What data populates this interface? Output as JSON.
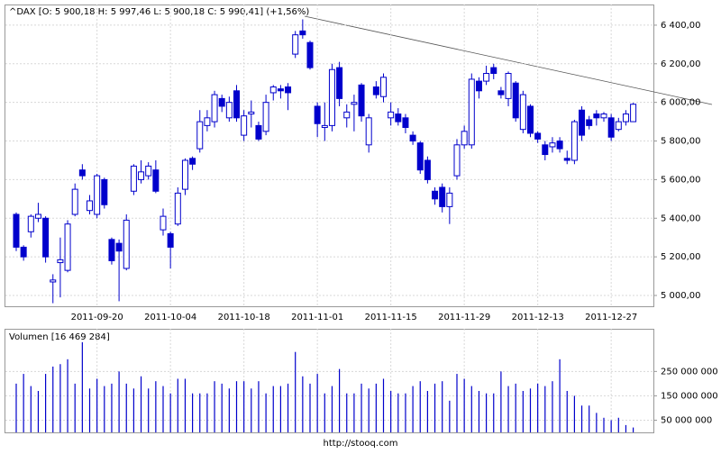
{
  "chart_data": [
    {
      "type": "candlestick",
      "subtitle": "^DAX [O: 5 900,18  H: 5 997,46  L: 5 900,18  C: 5 990,41] (+1,56%)",
      "color": "#0000cc",
      "categories": [
        null,
        null,
        null,
        null,
        null,
        null,
        null,
        null,
        null,
        null,
        null,
        "2011-09-20",
        null,
        null,
        null,
        null,
        null,
        null,
        null,
        null,
        null,
        "2011-10-04",
        null,
        null,
        null,
        null,
        null,
        null,
        null,
        null,
        null,
        "2011-10-18",
        null,
        null,
        null,
        null,
        null,
        null,
        null,
        null,
        null,
        "2011-11-01",
        null,
        null,
        null,
        null,
        null,
        null,
        null,
        null,
        null,
        "2011-11-15",
        null,
        null,
        null,
        null,
        null,
        null,
        null,
        null,
        null,
        "2011-11-29",
        null,
        null,
        null,
        null,
        null,
        null,
        null,
        null,
        null,
        "2011-12-13",
        null,
        null,
        null,
        null,
        null,
        null,
        null,
        null,
        null,
        "2011-12-27",
        null,
        null,
        null
      ],
      "open": [
        5420,
        5250,
        5330,
        5400,
        5400,
        5070,
        5170,
        5130,
        5420,
        5650,
        5440,
        5420,
        5600,
        5290,
        5270,
        5140,
        5540,
        5600,
        5620,
        5650,
        5340,
        5320,
        5370,
        5550,
        5710,
        5760,
        5880,
        5900,
        6020,
        5920,
        6060,
        5830,
        5940,
        5880,
        5850,
        6050,
        6070,
        6080,
        6250,
        6370,
        6310,
        5980,
        5870,
        5880,
        6180,
        5920,
        5990,
        6090,
        5780,
        6080,
        6030,
        5920,
        5940,
        5920,
        5830,
        5790,
        5700,
        5540,
        5560,
        5460,
        5620,
        5780,
        5780,
        6110,
        6110,
        6180,
        6060,
        6020,
        6100,
        5860,
        5980,
        5840,
        5780,
        5770,
        5800,
        5710,
        5700,
        5960,
        5910,
        5940,
        5920,
        5920,
        5860,
        5900,
        5900.18
      ],
      "high": [
        5430,
        5260,
        5420,
        5480,
        5410,
        5110,
        5300,
        5390,
        5580,
        5680,
        5520,
        5630,
        5610,
        5300,
        5290,
        5420,
        5680,
        5700,
        5690,
        5700,
        5450,
        5330,
        5560,
        5710,
        5720,
        5960,
        5960,
        6060,
        6040,
        6030,
        6090,
        5960,
        6010,
        5900,
        6040,
        6090,
        6090,
        6100,
        6370,
        6430,
        6320,
        6000,
        6000,
        6200,
        6210,
        5990,
        6040,
        6100,
        5940,
        6110,
        6150,
        6000,
        5970,
        5940,
        5850,
        5800,
        5720,
        5560,
        5580,
        5560,
        5810,
        5880,
        6150,
        6130,
        6190,
        6200,
        6080,
        6160,
        6110,
        6060,
        5990,
        5850,
        5800,
        5820,
        5820,
        5750,
        5910,
        5980,
        5930,
        5960,
        5950,
        5940,
        5920,
        5960,
        5997.46
      ],
      "low": [
        5230,
        5180,
        5300,
        5380,
        5170,
        4960,
        4990,
        5120,
        5410,
        5600,
        5420,
        5400,
        5450,
        5160,
        4970,
        5130,
        5520,
        5580,
        5600,
        5530,
        5310,
        5140,
        5360,
        5520,
        5650,
        5740,
        5850,
        5870,
        5950,
        5900,
        5900,
        5800,
        5870,
        5800,
        5830,
        6010,
        6020,
        5960,
        6230,
        6330,
        6170,
        5820,
        5800,
        5850,
        5980,
        5870,
        5850,
        5900,
        5740,
        6020,
        6000,
        5880,
        5880,
        5840,
        5780,
        5630,
        5580,
        5470,
        5430,
        5370,
        5600,
        5760,
        5760,
        6020,
        6090,
        6120,
        6020,
        5980,
        5900,
        5840,
        5820,
        5790,
        5700,
        5740,
        5740,
        5680,
        5680,
        5800,
        5860,
        5880,
        5900,
        5800,
        5850,
        5880,
        5900.18
      ],
      "close": [
        5250,
        5200,
        5410,
        5420,
        5200,
        5080,
        5185,
        5370,
        5550,
        5620,
        5490,
        5620,
        5470,
        5180,
        5230,
        5390,
        5670,
        5640,
        5670,
        5540,
        5410,
        5250,
        5530,
        5700,
        5680,
        5900,
        5920,
        6040,
        5980,
        6000,
        5920,
        5930,
        5950,
        5810,
        6000,
        6080,
        6060,
        6050,
        6350,
        6350,
        6180,
        5890,
        5880,
        6170,
        6020,
        5950,
        6000,
        5930,
        5920,
        6040,
        6130,
        5950,
        5900,
        5870,
        5800,
        5650,
        5600,
        5500,
        5460,
        5530,
        5780,
        5850,
        6120,
        6060,
        6150,
        6150,
        6040,
        6150,
        5920,
        6040,
        5840,
        5810,
        5730,
        5790,
        5760,
        5700,
        5900,
        5830,
        5880,
        5920,
        5940,
        5820,
        5900,
        5940,
        5990.41
      ],
      "ylim": [
        4944,
        6507
      ],
      "yticks": [
        {
          "value": 5000,
          "label": "5 000,00"
        },
        {
          "value": 5200,
          "label": "5 200,00"
        },
        {
          "value": 5400,
          "label": "5 400,00"
        },
        {
          "value": 5600,
          "label": "5 600,00"
        },
        {
          "value": 5800,
          "label": "5 800,00"
        },
        {
          "value": 6000,
          "label": "6 000,00"
        },
        {
          "value": 6200,
          "label": "6 200,00"
        },
        {
          "value": 6400,
          "label": "6 400,00"
        }
      ],
      "grid": true
    },
    {
      "type": "bar",
      "subtitle": "Volumen [16 469 284]",
      "color": "#0000cc",
      "values": [
        200000000,
        240000000,
        190000000,
        170000000,
        240000000,
        270000000,
        280000000,
        300000000,
        200000000,
        370000000,
        180000000,
        220000000,
        190000000,
        200000000,
        250000000,
        200000000,
        180000000,
        230000000,
        180000000,
        210000000,
        190000000,
        160000000,
        220000000,
        220000000,
        160000000,
        160000000,
        160000000,
        210000000,
        200000000,
        180000000,
        210000000,
        210000000,
        180000000,
        210000000,
        160000000,
        190000000,
        190000000,
        200000000,
        330000000,
        230000000,
        200000000,
        240000000,
        160000000,
        190000000,
        260000000,
        160000000,
        160000000,
        200000000,
        180000000,
        200000000,
        220000000,
        170000000,
        160000000,
        160000000,
        190000000,
        210000000,
        170000000,
        200000000,
        210000000,
        130000000,
        240000000,
        220000000,
        190000000,
        170000000,
        160000000,
        160000000,
        250000000,
        190000000,
        200000000,
        170000000,
        180000000,
        200000000,
        190000000,
        210000000,
        300000000,
        170000000,
        150000000,
        110000000,
        110000000,
        80000000,
        60000000,
        50000000,
        60000000,
        30000000,
        20000000
      ],
      "ylim": [
        0,
        425000000
      ],
      "yticks": [
        {
          "value": 50000000,
          "label": "50 000 000"
        },
        {
          "value": 150000000,
          "label": "150 000 000"
        },
        {
          "value": 250000000,
          "label": "250 000 000"
        }
      ],
      "grid": true,
      "footer": "http://stooq.com"
    }
  ]
}
